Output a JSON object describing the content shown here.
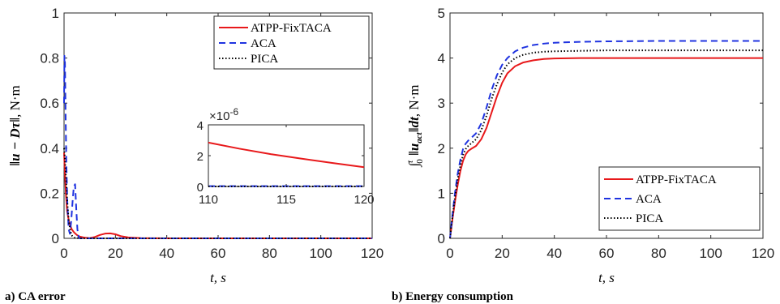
{
  "panels": {
    "a": {
      "caption": "a)  CA error",
      "ylabel_main": "‖u − Dτ‖",
      "ylabel_unit": ", N·m"
    },
    "b": {
      "caption": "b)  Energy consumption",
      "ylabel_prefix": "∫",
      "ylabel_sup": "t",
      "ylabel_sub": "0",
      "ylabel_main": " ‖u",
      "ylabel_subscript": "act",
      "ylabel_rest": "‖dt",
      "ylabel_unit": ", N·m"
    }
  },
  "chart_data": [
    {
      "id": "ca-error",
      "type": "line",
      "xlabel": "t, s",
      "ylabel": "‖u − Dτ‖, N·m",
      "xlim": [
        0,
        120
      ],
      "ylim": [
        0,
        1
      ],
      "xticks": [
        0,
        20,
        40,
        60,
        80,
        100,
        120
      ],
      "yticks": [
        0,
        0.2,
        0.4,
        0.6,
        0.8,
        1
      ],
      "ytick_labels": [
        "0",
        "0.2",
        "0.4",
        "0.6",
        "0.8",
        "1"
      ],
      "legend_position": "top-right",
      "series": [
        {
          "name": "ATPP-FixTACA",
          "color": "#e8191b",
          "dash": "solid",
          "x": [
            0,
            0.3,
            0.7,
            1.2,
            2,
            3,
            4,
            5,
            6,
            8,
            10,
            12,
            14,
            16,
            18,
            20,
            22,
            25,
            30,
            40,
            60,
            80,
            100,
            120
          ],
          "y": [
            0.38,
            0.3,
            0.2,
            0.12,
            0.07,
            0.04,
            0.025,
            0.015,
            0.008,
            0.003,
            0.001,
            0.006,
            0.015,
            0.021,
            0.022,
            0.018,
            0.01,
            0.004,
            0.001,
            0.0,
            0.0,
            0.0,
            0.0,
            0.0
          ]
        },
        {
          "name": "ACA",
          "color": "#1f33e0",
          "dash": "dashed",
          "x": [
            0,
            0.15,
            0.35,
            0.6,
            0.9,
            1.3,
            1.8,
            2.3,
            2.8,
            3.3,
            3.8,
            4.3,
            4.8,
            5.2,
            5.6,
            6,
            8,
            120
          ],
          "y": [
            0.6,
            0.81,
            0.78,
            0.55,
            0.33,
            0.15,
            0.04,
            0.02,
            0.08,
            0.16,
            0.23,
            0.24,
            0.12,
            0.04,
            0.01,
            0.0,
            0.0,
            0.0
          ]
        },
        {
          "name": "PICA",
          "color": "#000000",
          "dash": "dotted",
          "x": [
            0,
            0.3,
            0.7,
            1.2,
            1.8,
            2.5,
            3.2,
            4,
            6,
            120
          ],
          "y": [
            0.4,
            0.36,
            0.28,
            0.17,
            0.08,
            0.03,
            0.01,
            0.003,
            0.0,
            0.0
          ]
        }
      ],
      "inset": {
        "xlim": [
          110,
          120
        ],
        "ylim": [
          0,
          4
        ],
        "xticks": [
          110,
          115,
          120
        ],
        "yticks": [
          0,
          2,
          4
        ],
        "exponent_label": "×10",
        "exponent_power": "-6",
        "series": [
          {
            "name": "ATPP-FixTACA",
            "color": "#e8191b",
            "dash": "solid",
            "x": [
              110,
              112,
              114,
              116,
              118,
              120
            ],
            "y": [
              2.85,
              2.45,
              2.1,
              1.8,
              1.52,
              1.25
            ]
          },
          {
            "name": "ACA",
            "color": "#1f33e0",
            "dash": "dashed",
            "x": [
              110,
              120
            ],
            "y": [
              0.02,
              0.02
            ]
          },
          {
            "name": "PICA",
            "color": "#000000",
            "dash": "dotted",
            "x": [
              110,
              120
            ],
            "y": [
              0.0,
              0.0
            ]
          }
        ]
      }
    },
    {
      "id": "energy",
      "type": "line",
      "xlabel": "t, s",
      "ylabel": "∫₀ᵗ ‖u_act‖dt, N·m",
      "xlim": [
        0,
        120
      ],
      "ylim": [
        0,
        5
      ],
      "xticks": [
        0,
        20,
        40,
        60,
        80,
        100,
        120
      ],
      "yticks": [
        0,
        1,
        2,
        3,
        4,
        5
      ],
      "ytick_labels": [
        "0",
        "1",
        "2",
        "3",
        "4",
        "5"
      ],
      "legend_position": "bottom-right",
      "series": [
        {
          "name": "ATPP-FixTACA",
          "color": "#e8191b",
          "dash": "solid",
          "x": [
            0,
            1,
            2,
            3,
            4,
            5,
            6,
            7,
            8,
            10,
            12,
            14,
            16,
            18,
            20,
            22,
            25,
            28,
            32,
            36,
            40,
            50,
            60,
            80,
            100,
            120
          ],
          "y": [
            0,
            0.45,
            0.85,
            1.2,
            1.5,
            1.72,
            1.86,
            1.94,
            1.98,
            2.05,
            2.2,
            2.45,
            2.8,
            3.15,
            3.45,
            3.66,
            3.82,
            3.9,
            3.95,
            3.98,
            3.99,
            4.0,
            4.0,
            4.0,
            4.0,
            4.0
          ]
        },
        {
          "name": "ACA",
          "color": "#1f33e0",
          "dash": "dashed",
          "x": [
            0,
            1,
            2,
            3,
            4,
            5,
            6,
            7,
            8,
            10,
            12,
            14,
            16,
            18,
            20,
            22,
            25,
            28,
            32,
            36,
            40,
            50,
            60,
            80,
            100,
            120
          ],
          "y": [
            0,
            0.55,
            1.05,
            1.45,
            1.75,
            1.98,
            2.1,
            2.17,
            2.22,
            2.33,
            2.55,
            2.9,
            3.3,
            3.62,
            3.85,
            4.0,
            4.15,
            4.23,
            4.29,
            4.32,
            4.34,
            4.36,
            4.37,
            4.38,
            4.38,
            4.38
          ]
        },
        {
          "name": "PICA",
          "color": "#000000",
          "dash": "dotted",
          "x": [
            0,
            1,
            2,
            3,
            4,
            5,
            6,
            7,
            8,
            10,
            12,
            14,
            16,
            18,
            20,
            22,
            25,
            28,
            32,
            36,
            40,
            50,
            60,
            80,
            100,
            120
          ],
          "y": [
            0,
            0.5,
            0.95,
            1.33,
            1.62,
            1.85,
            1.98,
            2.05,
            2.1,
            2.2,
            2.4,
            2.72,
            3.1,
            3.42,
            3.68,
            3.86,
            4.0,
            4.07,
            4.12,
            4.14,
            4.15,
            4.16,
            4.17,
            4.17,
            4.17,
            4.17
          ]
        }
      ]
    }
  ]
}
